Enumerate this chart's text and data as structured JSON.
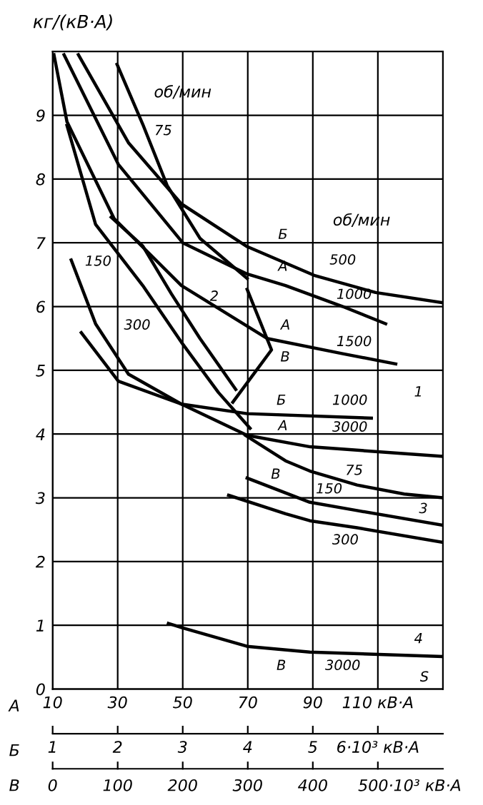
{
  "chart_data": {
    "type": "line",
    "ylabel": "кг/(кВ·А)",
    "xlabel": "А",
    "x2label": "Б",
    "xlim": [
      10,
      130
    ],
    "xticks": [
      10,
      30,
      50,
      70,
      90,
      {
        "value": 110,
        "label": "110 кВ·А"
      }
    ],
    "x2lim": [
      1,
      7
    ],
    "x2ticks": [
      1,
      2,
      3,
      4,
      5,
      {
        "value": 6,
        "label": "6·10³ кВ·А"
      }
    ],
    "ylim": [
      0,
      10
    ],
    "yticks": [
      0,
      1,
      2,
      3,
      4,
      5,
      6,
      7,
      8,
      9
    ],
    "grid": true,
    "legend": false,
    "marker": "none",
    "line_style": "solid",
    "series": [
      {
        "color": "#000000",
        "x": [
          17.9,
          33.3,
          49.6,
          69.8,
          90.4,
          109.3,
          130
        ],
        "values": [
          9.95,
          8.57,
          7.61,
          6.94,
          6.49,
          6.22,
          6.06
        ]
      },
      {
        "color": "#000000",
        "x": [
          13.5,
          30.2,
          50,
          69.8,
          81.6,
          99.2,
          112.4
        ],
        "values": [
          9.95,
          8.23,
          7.0,
          6.51,
          6.33,
          6.0,
          5.73
        ]
      },
      {
        "color": "#000000",
        "x": [
          10.4,
          14.4,
          28.9,
          49.6,
          75.9,
          99.2,
          115.5
        ],
        "values": [
          9.95,
          8.9,
          7.38,
          6.33,
          5.5,
          5.26,
          5.1
        ]
      },
      {
        "color": "#000000",
        "x": [
          15.7,
          23.2,
          33.3,
          49.6,
          69.8,
          108.0
        ],
        "values": [
          6.73,
          5.73,
          4.94,
          4.47,
          4.32,
          4.25
        ]
      },
      {
        "color": "#000000",
        "x": [
          18.8,
          30.2,
          49.6,
          69.8,
          89.2,
          130
        ],
        "values": [
          5.59,
          4.83,
          4.47,
          3.98,
          3.8,
          3.65
        ]
      },
      {
        "color": "#000000",
        "x": [
          29.8,
          37.7,
          45.2,
          55.3,
          69.8
        ],
        "values": [
          9.8,
          8.86,
          7.9,
          7.07,
          6.44
        ]
      },
      {
        "color": "#000000",
        "x": [
          28.0,
          37.7,
          46.5,
          55.3,
          66.3
        ],
        "values": [
          7.4,
          6.95,
          6.2,
          5.5,
          4.7
        ]
      },
      {
        "color": "#000000",
        "x": [
          14.4,
          23.2,
          37.7,
          49.6,
          61.0,
          70.7
        ],
        "values": [
          8.84,
          7.29,
          6.33,
          5.44,
          4.65,
          4.09
        ]
      },
      {
        "color": "#000000",
        "x": [
          69.8,
          77.3,
          65.4
        ],
        "values": [
          6.27,
          5.32,
          4.5
        ]
      },
      {
        "color": "#000000",
        "x": [
          69.3,
          81.6,
          89.1,
          103.6,
          118.1,
          130
        ],
        "values": [
          3.98,
          3.58,
          3.42,
          3.2,
          3.06,
          3.0
        ]
      },
      {
        "color": "#000000",
        "x": [
          69.8,
          89.1,
          103.6,
          130
        ],
        "values": [
          3.31,
          2.93,
          2.8,
          2.57
        ]
      },
      {
        "color": "#000000",
        "x": [
          64.1,
          81.6,
          89.1,
          103.6,
          130
        ],
        "values": [
          3.04,
          2.75,
          2.64,
          2.53,
          2.3
        ]
      },
      {
        "color": "#000000",
        "x": [
          45.6,
          50,
          69.8,
          89.1,
          130
        ],
        "values": [
          1.03,
          0.96,
          0.67,
          0.58,
          0.51
        ]
      }
    ],
    "annotations": [
      "об/мин",
      "об/мин",
      "В",
      "0",
      "100",
      "200",
      "300",
      "400",
      "500·10³ кВ·А",
      "75",
      "150",
      "300",
      "2",
      "Б",
      "500",
      "А",
      "1000",
      "А",
      "1500",
      "В",
      "Б",
      "1000",
      "А",
      "3000",
      "В",
      "75",
      "150",
      "300",
      "1",
      "3",
      "4",
      "В",
      "3000",
      "S"
    ]
  }
}
